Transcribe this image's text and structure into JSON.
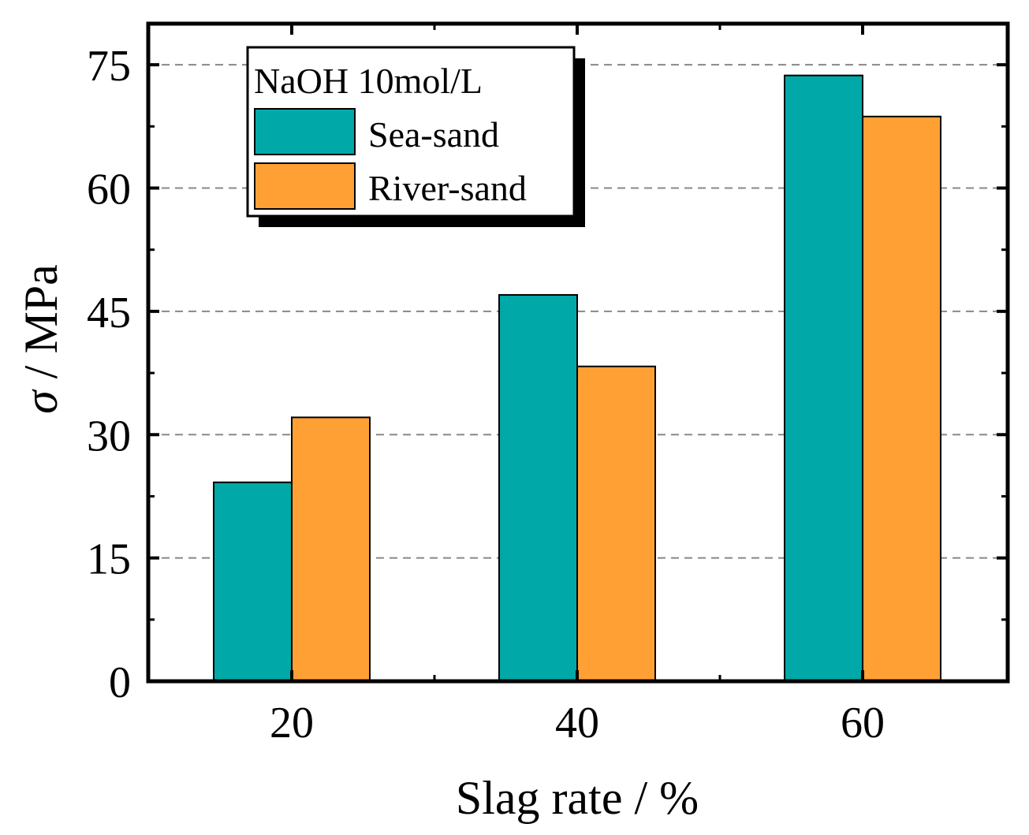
{
  "chart_data": {
    "type": "bar",
    "title": "",
    "xlabel": "Slag rate / %",
    "ylabel_symbol": "σ",
    "ylabel_unit": " / MPa",
    "categories": [
      "20",
      "40",
      "60"
    ],
    "series": [
      {
        "name": "Sea-sand",
        "color": "#00A8A8",
        "values": [
          24.2,
          47.0,
          73.7
        ]
      },
      {
        "name": "River-sand",
        "color": "#FFA035",
        "values": [
          32.1,
          38.3,
          68.7
        ]
      }
    ],
    "ylim": [
      0,
      80
    ],
    "yticks": [
      0,
      15,
      30,
      45,
      60,
      75
    ],
    "grid": true,
    "legend": {
      "title": "NaOH  10mol/L",
      "position": "top-left"
    }
  }
}
